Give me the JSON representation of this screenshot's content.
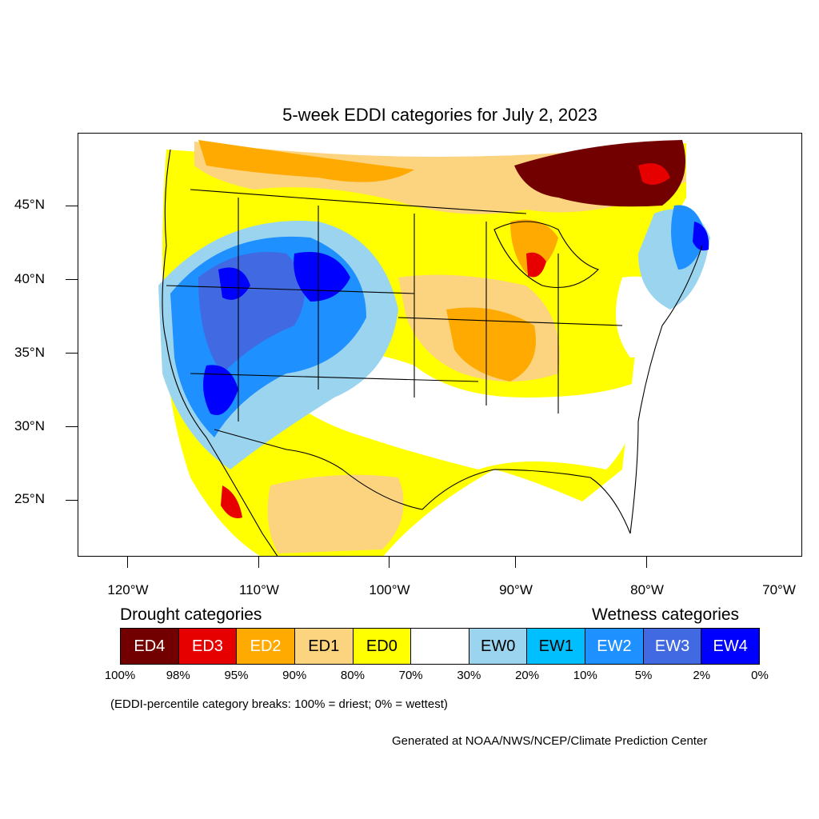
{
  "title": "5-week EDDI categories for July 2, 2023",
  "lat_labels": [
    "45°N",
    "40°N",
    "35°N",
    "30°N",
    "25°N"
  ],
  "lon_labels": [
    "120°W",
    "110°W",
    "100°W",
    "90°W",
    "80°W",
    "70°W"
  ],
  "legend": {
    "drought_heading": "Drought categories",
    "wetness_heading": "Wetness categories",
    "categories": [
      {
        "label": "ED4",
        "color": "#730000",
        "text_color": "#ffffff"
      },
      {
        "label": "ED3",
        "color": "#e60000",
        "text_color": "#ffffff"
      },
      {
        "label": "ED2",
        "color": "#ffaa00",
        "text_color": "#ffffff"
      },
      {
        "label": "ED1",
        "color": "#fcd37f",
        "text_color": "#000000"
      },
      {
        "label": "ED0",
        "color": "#ffff00",
        "text_color": "#000000"
      },
      {
        "label": "",
        "color": "#ffffff",
        "text_color": "#000000"
      },
      {
        "label": "EW0",
        "color": "#9ad4ef",
        "text_color": "#000000"
      },
      {
        "label": "EW1",
        "color": "#00bfff",
        "text_color": "#000000"
      },
      {
        "label": "EW2",
        "color": "#1e90ff",
        "text_color": "#ffffff"
      },
      {
        "label": "EW3",
        "color": "#4169e1",
        "text_color": "#ffffff"
      },
      {
        "label": "EW4",
        "color": "#0000ff",
        "text_color": "#ffffff"
      }
    ],
    "percent_breaks": [
      "100%",
      "98%",
      "95%",
      "90%",
      "80%",
      "70%",
      "30%",
      "20%",
      "10%",
      "5%",
      "2%",
      "0%"
    ]
  },
  "note": "(EDDI-percentile category breaks: 100% = driest; 0% = wettest)",
  "credit": "Generated at NOAA/NWS/NCEP/Climate Prediction Center"
}
